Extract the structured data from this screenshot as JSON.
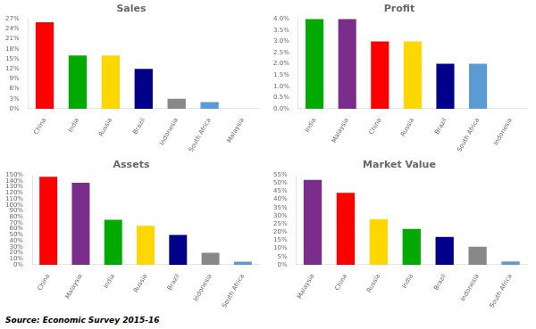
{
  "chart_data": [
    {
      "type": "bar",
      "title": "Sales",
      "categories": [
        "China",
        "India",
        "Russia",
        "Brazil",
        "Indonesia",
        "South Africa",
        "Malaysia"
      ],
      "values": [
        0.26,
        0.16,
        0.16,
        0.12,
        0.03,
        0.02,
        0
      ],
      "colors": [
        "#FF0000",
        "#00AA00",
        "#FFD700",
        "#00008B",
        "#888888",
        "#5B9BD5",
        "#888888"
      ],
      "ylim": [
        0,
        0.27
      ],
      "yticks": [
        {
          "value": 0,
          "label": "0%"
        },
        {
          "value": 0.03,
          "label": "3%"
        },
        {
          "value": 0.06,
          "label": "6%"
        },
        {
          "value": 0.09,
          "label": "9%"
        },
        {
          "value": 0.12,
          "label": "12%"
        },
        {
          "value": 0.15,
          "label": "15%"
        },
        {
          "value": 0.18,
          "label": "18%"
        },
        {
          "value": 0.21,
          "label": "21%"
        },
        {
          "value": 0.24,
          "label": "24%"
        },
        {
          "value": 0.27,
          "label": "27%"
        }
      ],
      "grid": false
    },
    {
      "type": "bar",
      "title": "Profit",
      "categories": [
        "India",
        "Malaysia",
        "China",
        "Russia",
        "Brazil",
        "South Africa",
        "Indonesia"
      ],
      "values": [
        0.04,
        0.04,
        0.03,
        0.03,
        0.02,
        0.02,
        0
      ],
      "colors": [
        "#00AA00",
        "#7B2D8B",
        "#FF0000",
        "#FFD700",
        "#00008B",
        "#5B9BD5",
        "#888888"
      ],
      "ylim": [
        0,
        0.04
      ],
      "yticks": [
        {
          "value": 0,
          "label": "0.0%"
        },
        {
          "value": 0.005,
          "label": "0.5%"
        },
        {
          "value": 0.01,
          "label": "1.0%"
        },
        {
          "value": 0.015,
          "label": "1.5%"
        },
        {
          "value": 0.02,
          "label": "2.0%"
        },
        {
          "value": 0.025,
          "label": "2.5%"
        },
        {
          "value": 0.03,
          "label": "3.0%"
        },
        {
          "value": 0.035,
          "label": "3.5%"
        },
        {
          "value": 0.04,
          "label": "4.0%"
        }
      ],
      "grid": false
    },
    {
      "type": "bar",
      "title": "Assets",
      "categories": [
        "China",
        "Malaysia",
        "India",
        "Russia",
        "Brazil",
        "Indonesia",
        "South Africa"
      ],
      "values": [
        1.47,
        1.37,
        0.75,
        0.65,
        0.5,
        0.2,
        0.05
      ],
      "colors": [
        "#FF0000",
        "#7B2D8B",
        "#00AA00",
        "#FFD700",
        "#00008B",
        "#888888",
        "#5B9BD5"
      ],
      "ylim": [
        0,
        1.5
      ],
      "yticks": [
        {
          "value": 0,
          "label": "0%"
        },
        {
          "value": 0.1,
          "label": "10%"
        },
        {
          "value": 0.2,
          "label": "20%"
        },
        {
          "value": 0.3,
          "label": "30%"
        },
        {
          "value": 0.4,
          "label": "40%"
        },
        {
          "value": 0.5,
          "label": "50%"
        },
        {
          "value": 0.6,
          "label": "60%"
        },
        {
          "value": 0.7,
          "label": "70%"
        },
        {
          "value": 0.8,
          "label": "80%"
        },
        {
          "value": 0.9,
          "label": "90%"
        },
        {
          "value": 1.0,
          "label": "100%"
        },
        {
          "value": 1.1,
          "label": "110%"
        },
        {
          "value": 1.2,
          "label": "120%"
        },
        {
          "value": 1.3,
          "label": "130%"
        },
        {
          "value": 1.4,
          "label": "140%"
        },
        {
          "value": 1.5,
          "label": "150%"
        }
      ],
      "grid": false
    },
    {
      "type": "bar",
      "title": "Market Value",
      "categories": [
        "Malaysia",
        "China",
        "Russia",
        "India",
        "Brazil",
        "Indonesia",
        "South Africa"
      ],
      "values": [
        0.52,
        0.44,
        0.28,
        0.22,
        0.17,
        0.11,
        0.02
      ],
      "colors": [
        "#7B2D8B",
        "#FF0000",
        "#FFD700",
        "#00AA00",
        "#00008B",
        "#888888",
        "#5B9BD5"
      ],
      "ylim": [
        0,
        0.55
      ],
      "yticks": [
        {
          "value": 0,
          "label": "0%"
        },
        {
          "value": 0.05,
          "label": "5%"
        },
        {
          "value": 0.1,
          "label": "10%"
        },
        {
          "value": 0.15,
          "label": "15%"
        },
        {
          "value": 0.2,
          "label": "20%"
        },
        {
          "value": 0.25,
          "label": "25%"
        },
        {
          "value": 0.3,
          "label": "30%"
        },
        {
          "value": 0.35,
          "label": "35%"
        },
        {
          "value": 0.4,
          "label": "40%"
        },
        {
          "value": 0.45,
          "label": "45%"
        },
        {
          "value": 0.5,
          "label": "50%"
        },
        {
          "value": 0.55,
          "label": "55%"
        }
      ],
      "grid": false
    }
  ],
  "annotation": "Source: Economic Survey 2015-16"
}
